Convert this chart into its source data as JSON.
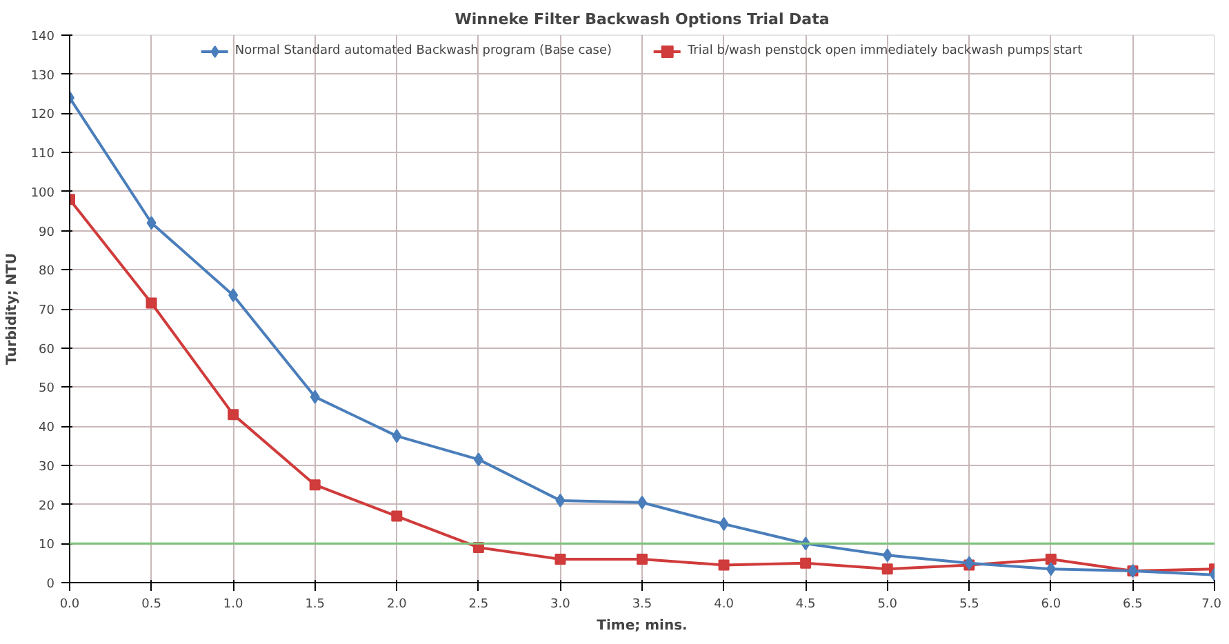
{
  "chart_data": {
    "type": "line",
    "title": "Winneke Filter Backwash Options Trial Data",
    "xlabel": "Time; mins.",
    "ylabel": "Turbidity; NTU",
    "x": [
      0,
      0.5,
      1.0,
      1.5,
      2.0,
      2.5,
      3.0,
      3.5,
      4.0,
      4.5,
      5.0,
      5.5,
      6.0,
      6.5,
      7.0
    ],
    "series": [
      {
        "name": "Normal Standard automated Backwash program (Base case)",
        "color": "#4a7ebb",
        "marker": "diamond",
        "values": [
          124,
          92,
          73.5,
          47.5,
          37.5,
          31.5,
          21,
          20.5,
          15,
          10,
          7,
          5,
          3.5,
          3,
          2
        ]
      },
      {
        "name": "Trial b/wash penstock open immediately backwash pumps start",
        "color": "#d03b3b",
        "marker": "square",
        "values": [
          98,
          71.5,
          43,
          25,
          17,
          9,
          6,
          6,
          4.5,
          5,
          3.5,
          4.5,
          6,
          3,
          3.5
        ]
      }
    ],
    "xlim": [
      0,
      7
    ],
    "xticks": [
      {
        "value": 0,
        "label": "0.0"
      },
      0.5,
      {
        "value": 1,
        "label": "1.0"
      },
      1.5,
      {
        "value": 2,
        "label": "2.0"
      },
      2.5,
      {
        "value": 3,
        "label": "3.0"
      },
      3.5,
      {
        "value": 4,
        "label": "4.0"
      },
      4.5,
      {
        "value": 5,
        "label": "5.0"
      },
      5.5,
      {
        "value": 6,
        "label": "6.0"
      },
      6.5,
      {
        "value": 7,
        "label": "7.0"
      }
    ],
    "ylim": [
      0,
      140
    ],
    "yticks": [
      0,
      10,
      20,
      30,
      40,
      50,
      60,
      70,
      80,
      90,
      100,
      110,
      120,
      130,
      140
    ],
    "ref_lines": [
      {
        "axis": "y",
        "value": 10,
        "color": "#7cc47c"
      }
    ],
    "grid": true,
    "legend": "top",
    "line_style": "solid"
  }
}
